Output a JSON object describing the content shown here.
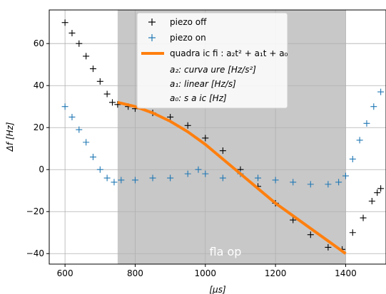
{
  "chart_data": {
    "type": "scatter",
    "xlabel": "[μs]",
    "ylabel": "Δf [Hz]",
    "xlim": [
      555,
      1515
    ],
    "ylim": [
      -45,
      76
    ],
    "xticks": [
      600,
      800,
      1000,
      1200,
      1400
    ],
    "yticks": [
      -40,
      -20,
      0,
      20,
      40,
      60
    ],
    "grid": true,
    "legend_position": "top-center",
    "shaded_region": {
      "x": [
        750,
        1400
      ],
      "label": "fla op",
      "color": "#c8c8c8"
    },
    "series": [
      {
        "name": "piezo off",
        "marker": "+",
        "color": "#000000",
        "x": [
          600,
          620,
          640,
          660,
          680,
          700,
          720,
          735,
          750,
          780,
          800,
          850,
          900,
          950,
          1000,
          1050,
          1100,
          1150,
          1200,
          1250,
          1300,
          1350,
          1390,
          1420,
          1450,
          1475,
          1490,
          1500
        ],
        "y": [
          70,
          65,
          60,
          54,
          48,
          42,
          36,
          32,
          31,
          30,
          29,
          27,
          25,
          21,
          15,
          9,
          0,
          -8,
          -16,
          -24,
          -31,
          -37,
          -38,
          -30,
          -23,
          -15,
          -11,
          -9
        ]
      },
      {
        "name": "piezo on",
        "marker": "+",
        "color": "#1f77b4",
        "x": [
          600,
          620,
          640,
          660,
          680,
          700,
          720,
          740,
          760,
          800,
          850,
          900,
          950,
          980,
          1000,
          1050,
          1100,
          1150,
          1200,
          1250,
          1300,
          1350,
          1380,
          1400,
          1420,
          1440,
          1460,
          1480,
          1500
        ],
        "y": [
          30,
          25,
          19,
          13,
          6,
          0,
          -4,
          -6,
          -5,
          -5,
          -4,
          -4,
          -2,
          0,
          -2,
          -4,
          -2,
          -4,
          -5,
          -6,
          -7,
          -7,
          -6,
          -3,
          5,
          14,
          22,
          30,
          37
        ]
      }
    ],
    "fit": {
      "name": "quadra ic fi : a₂t² + a₁t + a₀",
      "color": "#ff7f0e",
      "x": [
        750,
        800,
        850,
        900,
        950,
        1000,
        1050,
        1100,
        1150,
        1200,
        1250,
        1300,
        1350,
        1400
      ],
      "y": [
        32,
        30,
        27,
        23,
        18,
        12,
        5,
        -2,
        -9,
        -16,
        -22,
        -28,
        -34,
        -40
      ]
    },
    "legend_notes": [
      "a₂: curva ure [Hz/s²]",
      "a₁: linear [Hz/s]",
      "a₀: s a ic [Hz]"
    ]
  }
}
